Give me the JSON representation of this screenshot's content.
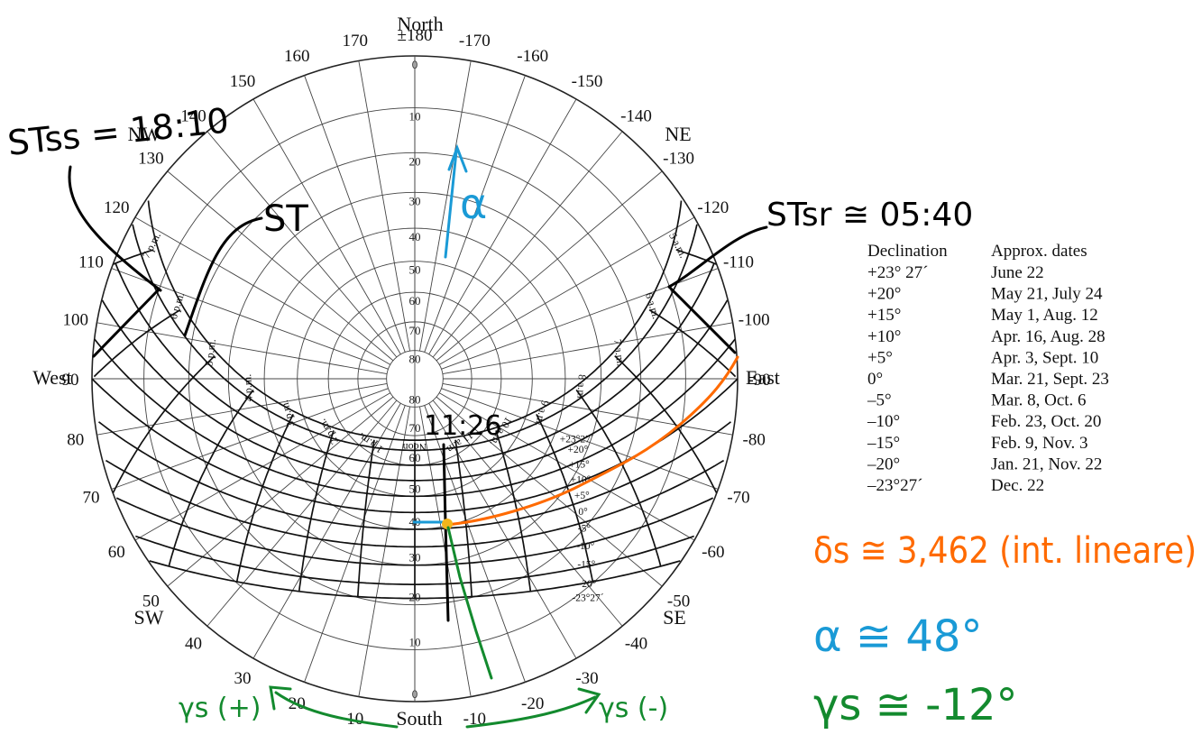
{
  "compass": {
    "north": "North",
    "south": "South",
    "east": "East",
    "west": "West",
    "ne": "NE",
    "nw": "NW",
    "se": "SE",
    "sw": "SW"
  },
  "azimuth_labels": [
    {
      "text": "±180",
      "az": 180
    },
    {
      "text": "170",
      "az": 170
    },
    {
      "text": "160",
      "az": 160
    },
    {
      "text": "150",
      "az": 150
    },
    {
      "text": "140",
      "az": 140
    },
    {
      "text": "130",
      "az": 130
    },
    {
      "text": "120",
      "az": 120
    },
    {
      "text": "110",
      "az": 110
    },
    {
      "text": "100",
      "az": 100
    },
    {
      "text": "90",
      "az": 90
    },
    {
      "text": "80",
      "az": 80
    },
    {
      "text": "70",
      "az": 70
    },
    {
      "text": "60",
      "az": 60
    },
    {
      "text": "50",
      "az": 50
    },
    {
      "text": "40",
      "az": 40
    },
    {
      "text": "30",
      "az": 30
    },
    {
      "text": "20",
      "az": 20
    },
    {
      "text": "10",
      "az": 10
    },
    {
      "text": "-10",
      "az": -10
    },
    {
      "text": "-20",
      "az": -20
    },
    {
      "text": "-30",
      "az": -30
    },
    {
      "text": "-40",
      "az": -40
    },
    {
      "text": "-50",
      "az": -50
    },
    {
      "text": "-60",
      "az": -60
    },
    {
      "text": "-70",
      "az": -70
    },
    {
      "text": "-80",
      "az": -80
    },
    {
      "text": "-90",
      "az": -90
    },
    {
      "text": "-100",
      "az": -100
    },
    {
      "text": "-110",
      "az": -110
    },
    {
      "text": "-120",
      "az": -120
    },
    {
      "text": "-130",
      "az": -130
    },
    {
      "text": "-140",
      "az": -140
    },
    {
      "text": "-150",
      "az": -150
    },
    {
      "text": "-160",
      "az": -160
    },
    {
      "text": "-170",
      "az": -170
    }
  ],
  "altitude_labels_north": [
    "0",
    "10",
    "20",
    "30",
    "40",
    "50",
    "60",
    "70",
    "80"
  ],
  "altitude_labels_south": [
    "80",
    "70",
    "60",
    "50",
    "40",
    "30",
    "20",
    "10",
    "0"
  ],
  "hour_labels": [
    "5 a.m.",
    "6 a.m.",
    "7 a.m.",
    "8 a.m.",
    "9 a.m.",
    "10 a.m.",
    "11 a.m.",
    "Noon",
    "1 p.m.",
    "2 p.m.",
    "3 p.m.",
    "4 p.m.",
    "5 p.m.",
    "6 p.m.",
    "7 p.m."
  ],
  "declination_labels": [
    "+23°27´",
    "+20°",
    "+15°",
    "+10°",
    "+5°",
    "0°",
    "-5°",
    "-10°",
    "-15°",
    "-20°",
    "-23°27´"
  ],
  "declination_table": {
    "header_declination": "Declination",
    "header_dates": "Approx. dates",
    "rows": [
      {
        "decl": "+23° 27´",
        "dates": "June 22"
      },
      {
        "decl": "+20°",
        "dates": "May 21, July 24"
      },
      {
        "decl": "+15°",
        "dates": "May 1, Aug. 12"
      },
      {
        "decl": "+10°",
        "dates": "Apr. 16, Aug. 28"
      },
      {
        "decl": "+5°",
        "dates": "Apr. 3, Sept. 10"
      },
      {
        "decl": "0°",
        "dates": "Mar. 21, Sept. 23"
      },
      {
        "decl": "–5°",
        "dates": "Mar. 8, Oct. 6"
      },
      {
        "decl": "–10°",
        "dates": "Feb. 23, Oct. 20"
      },
      {
        "decl": "–15°",
        "dates": "Feb. 9, Nov. 3"
      },
      {
        "decl": "–20°",
        "dates": "Jan. 21, Nov. 22"
      },
      {
        "decl": "–23°27´",
        "dates": "Dec. 22"
      }
    ]
  },
  "annotations": {
    "st_ss": "STss = 18:10",
    "st": "ST",
    "st_sr": "STsr ≅ 05:40",
    "time_point": "11:26",
    "alpha_arrow": "α",
    "delta_s": "δs ≅ 3,462 (int. lineare)",
    "alpha": "α ≅ 48°",
    "gamma_s": "γs ≅ -12°",
    "gamma_plus": "γs (+)",
    "gamma_minus": "γs (-)"
  },
  "colors": {
    "ink": "#111111",
    "blue": "#1a9ad6",
    "orange": "#ff6a00",
    "green": "#138a2e",
    "yellow": "#f2b51b"
  }
}
